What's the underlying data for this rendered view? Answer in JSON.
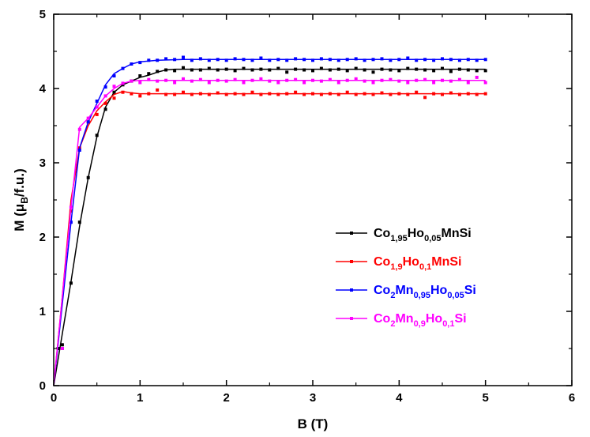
{
  "chart_data": {
    "type": "line",
    "xlabel": "B (T)",
    "ylabel": {
      "main": "M (",
      "mu": "μ",
      "sub": "B",
      "rest": "/f.u.)"
    },
    "xlim": [
      0,
      6
    ],
    "ylim": [
      0,
      5
    ],
    "xticks": [
      "0",
      "1",
      "2",
      "3",
      "4",
      "5",
      "6"
    ],
    "yticks": [
      "0",
      "1",
      "2",
      "3",
      "4",
      "5"
    ],
    "legend_position": "center-right",
    "series": [
      {
        "key": "s1",
        "color": "#000000",
        "legend_parts": [
          {
            "t": "Co",
            "sub": false
          },
          {
            "t": "1,95",
            "sub": true
          },
          {
            "t": "Ho",
            "sub": false
          },
          {
            "t": "0,05",
            "sub": true
          },
          {
            "t": "MnSi",
            "sub": false
          }
        ],
        "fit": [
          [
            0,
            0
          ],
          [
            0.1,
            0.7
          ],
          [
            0.2,
            1.4
          ],
          [
            0.3,
            2.15
          ],
          [
            0.4,
            2.8
          ],
          [
            0.5,
            3.35
          ],
          [
            0.6,
            3.75
          ],
          [
            0.7,
            3.95
          ],
          [
            0.8,
            4.05
          ],
          [
            0.9,
            4.1
          ],
          [
            1.0,
            4.15
          ],
          [
            1.1,
            4.18
          ],
          [
            1.2,
            4.22
          ],
          [
            1.3,
            4.25
          ],
          [
            1.4,
            4.26
          ],
          [
            1.5,
            4.26
          ],
          [
            2.0,
            4.26
          ],
          [
            3.0,
            4.26
          ],
          [
            4.0,
            4.26
          ],
          [
            5.0,
            4.26
          ]
        ],
        "points": [
          [
            0.05,
            0.5
          ],
          [
            0.1,
            0.55
          ],
          [
            0.2,
            1.38
          ],
          [
            0.3,
            2.2
          ],
          [
            0.4,
            2.8
          ],
          [
            0.5,
            3.37
          ],
          [
            0.6,
            3.72
          ],
          [
            0.7,
            3.95
          ],
          [
            0.8,
            4.05
          ],
          [
            0.9,
            4.1
          ],
          [
            1.0,
            4.17
          ],
          [
            1.1,
            4.2
          ],
          [
            1.2,
            4.23
          ],
          [
            1.3,
            4.25
          ],
          [
            1.4,
            4.24
          ],
          [
            1.5,
            4.28
          ],
          [
            1.6,
            4.25
          ],
          [
            1.7,
            4.25
          ],
          [
            1.8,
            4.27
          ],
          [
            1.9,
            4.25
          ],
          [
            2.0,
            4.26
          ],
          [
            2.1,
            4.24
          ],
          [
            2.2,
            4.27
          ],
          [
            2.3,
            4.25
          ],
          [
            2.4,
            4.26
          ],
          [
            2.5,
            4.25
          ],
          [
            2.6,
            4.27
          ],
          [
            2.7,
            4.22
          ],
          [
            2.8,
            4.26
          ],
          [
            2.9,
            4.25
          ],
          [
            3.0,
            4.24
          ],
          [
            3.1,
            4.27
          ],
          [
            3.2,
            4.25
          ],
          [
            3.3,
            4.26
          ],
          [
            3.4,
            4.24
          ],
          [
            3.5,
            4.27
          ],
          [
            3.6,
            4.25
          ],
          [
            3.7,
            4.22
          ],
          [
            3.8,
            4.26
          ],
          [
            3.9,
            4.25
          ],
          [
            4.0,
            4.24
          ],
          [
            4.1,
            4.27
          ],
          [
            4.2,
            4.26
          ],
          [
            4.3,
            4.25
          ],
          [
            4.4,
            4.24
          ],
          [
            4.5,
            4.27
          ],
          [
            4.6,
            4.23
          ],
          [
            4.7,
            4.26
          ],
          [
            4.8,
            4.25
          ],
          [
            4.9,
            4.24
          ],
          [
            5.0,
            4.24
          ]
        ]
      },
      {
        "key": "s2",
        "color": "#ff0000",
        "legend_parts": [
          {
            "t": "Co",
            "sub": false
          },
          {
            "t": "1,9",
            "sub": true
          },
          {
            "t": "Ho",
            "sub": false
          },
          {
            "t": "0,1",
            "sub": true
          },
          {
            "t": "MnSi",
            "sub": false
          }
        ],
        "fit": [
          [
            0,
            0
          ],
          [
            0.1,
            1.2
          ],
          [
            0.2,
            2.5
          ],
          [
            0.3,
            3.2
          ],
          [
            0.4,
            3.5
          ],
          [
            0.5,
            3.7
          ],
          [
            0.6,
            3.82
          ],
          [
            0.7,
            3.92
          ],
          [
            0.8,
            3.96
          ],
          [
            0.9,
            3.94
          ],
          [
            1.0,
            3.93
          ],
          [
            2.0,
            3.93
          ],
          [
            3.0,
            3.93
          ],
          [
            4.0,
            3.93
          ],
          [
            5.0,
            3.93
          ]
        ],
        "points": [
          [
            0.1,
            0.5
          ],
          [
            0.2,
            2.35
          ],
          [
            0.3,
            3.2
          ],
          [
            0.4,
            3.55
          ],
          [
            0.5,
            3.65
          ],
          [
            0.6,
            3.8
          ],
          [
            0.7,
            3.87
          ],
          [
            0.8,
            3.95
          ],
          [
            0.9,
            3.93
          ],
          [
            1.0,
            3.9
          ],
          [
            1.1,
            3.93
          ],
          [
            1.2,
            3.98
          ],
          [
            1.3,
            3.92
          ],
          [
            1.4,
            3.92
          ],
          [
            1.5,
            3.95
          ],
          [
            1.6,
            3.92
          ],
          [
            1.7,
            3.93
          ],
          [
            1.8,
            3.92
          ],
          [
            1.9,
            3.94
          ],
          [
            2.0,
            3.92
          ],
          [
            2.1,
            3.93
          ],
          [
            2.2,
            3.92
          ],
          [
            2.3,
            3.95
          ],
          [
            2.4,
            3.92
          ],
          [
            2.5,
            3.93
          ],
          [
            2.6,
            3.92
          ],
          [
            2.7,
            3.93
          ],
          [
            2.8,
            3.95
          ],
          [
            2.9,
            3.92
          ],
          [
            3.0,
            3.93
          ],
          [
            3.1,
            3.92
          ],
          [
            3.2,
            3.93
          ],
          [
            3.3,
            3.92
          ],
          [
            3.4,
            3.95
          ],
          [
            3.5,
            3.92
          ],
          [
            3.6,
            3.93
          ],
          [
            3.7,
            3.92
          ],
          [
            3.8,
            3.94
          ],
          [
            3.9,
            3.92
          ],
          [
            4.0,
            3.93
          ],
          [
            4.1,
            3.92
          ],
          [
            4.2,
            3.95
          ],
          [
            4.3,
            3.88
          ],
          [
            4.4,
            3.93
          ],
          [
            4.5,
            3.92
          ],
          [
            4.6,
            3.94
          ],
          [
            4.7,
            3.92
          ],
          [
            4.8,
            3.93
          ],
          [
            4.9,
            3.92
          ],
          [
            5.0,
            3.93
          ]
        ]
      },
      {
        "key": "s3",
        "color": "#0000ff",
        "legend_parts": [
          {
            "t": "Co",
            "sub": false
          },
          {
            "t": "2",
            "sub": true
          },
          {
            "t": "Mn",
            "sub": false
          },
          {
            "t": "0,95",
            "sub": true
          },
          {
            "t": "Ho",
            "sub": false
          },
          {
            "t": "0,05",
            "sub": true
          },
          {
            "t": "Si",
            "sub": false
          }
        ],
        "fit": [
          [
            0,
            0
          ],
          [
            0.1,
            1.1
          ],
          [
            0.2,
            2.2
          ],
          [
            0.3,
            3.2
          ],
          [
            0.4,
            3.55
          ],
          [
            0.5,
            3.8
          ],
          [
            0.6,
            4.05
          ],
          [
            0.7,
            4.2
          ],
          [
            0.8,
            4.27
          ],
          [
            0.9,
            4.33
          ],
          [
            1.0,
            4.36
          ],
          [
            1.2,
            4.38
          ],
          [
            1.5,
            4.39
          ],
          [
            2.0,
            4.39
          ],
          [
            3.0,
            4.39
          ],
          [
            4.0,
            4.39
          ],
          [
            5.0,
            4.39
          ]
        ],
        "points": [
          [
            0.1,
            0.5
          ],
          [
            0.2,
            2.2
          ],
          [
            0.3,
            3.17
          ],
          [
            0.4,
            3.55
          ],
          [
            0.5,
            3.83
          ],
          [
            0.6,
            4.02
          ],
          [
            0.7,
            4.17
          ],
          [
            0.8,
            4.27
          ],
          [
            0.9,
            4.33
          ],
          [
            1.0,
            4.35
          ],
          [
            1.1,
            4.38
          ],
          [
            1.2,
            4.38
          ],
          [
            1.3,
            4.4
          ],
          [
            1.4,
            4.39
          ],
          [
            1.5,
            4.42
          ],
          [
            1.6,
            4.38
          ],
          [
            1.7,
            4.4
          ],
          [
            1.8,
            4.38
          ],
          [
            1.9,
            4.39
          ],
          [
            2.0,
            4.38
          ],
          [
            2.1,
            4.4
          ],
          [
            2.2,
            4.39
          ],
          [
            2.3,
            4.38
          ],
          [
            2.4,
            4.41
          ],
          [
            2.5,
            4.38
          ],
          [
            2.6,
            4.39
          ],
          [
            2.7,
            4.38
          ],
          [
            2.8,
            4.4
          ],
          [
            2.9,
            4.39
          ],
          [
            3.0,
            4.38
          ],
          [
            3.1,
            4.4
          ],
          [
            3.2,
            4.39
          ],
          [
            3.3,
            4.38
          ],
          [
            3.4,
            4.39
          ],
          [
            3.5,
            4.4
          ],
          [
            3.6,
            4.38
          ],
          [
            3.7,
            4.39
          ],
          [
            3.8,
            4.4
          ],
          [
            3.9,
            4.38
          ],
          [
            4.0,
            4.39
          ],
          [
            4.1,
            4.41
          ],
          [
            4.2,
            4.38
          ],
          [
            4.3,
            4.39
          ],
          [
            4.4,
            4.38
          ],
          [
            4.5,
            4.4
          ],
          [
            4.6,
            4.39
          ],
          [
            4.7,
            4.38
          ],
          [
            4.8,
            4.39
          ],
          [
            4.9,
            4.38
          ],
          [
            5.0,
            4.39
          ]
        ]
      },
      {
        "key": "s4",
        "color": "#ff00ff",
        "legend_parts": [
          {
            "t": "Co",
            "sub": false
          },
          {
            "t": "2",
            "sub": true
          },
          {
            "t": "Mn",
            "sub": false
          },
          {
            "t": "0,9",
            "sub": true
          },
          {
            "t": "Ho",
            "sub": false
          },
          {
            "t": "0,1",
            "sub": true
          },
          {
            "t": "Si",
            "sub": false
          }
        ],
        "fit": [
          [
            0,
            0
          ],
          [
            0.1,
            1.2
          ],
          [
            0.2,
            2.4
          ],
          [
            0.3,
            3.48
          ],
          [
            0.4,
            3.6
          ],
          [
            0.5,
            3.75
          ],
          [
            0.6,
            3.9
          ],
          [
            0.7,
            4.0
          ],
          [
            0.8,
            4.07
          ],
          [
            0.9,
            4.1
          ],
          [
            1.0,
            4.11
          ],
          [
            1.5,
            4.11
          ],
          [
            2.0,
            4.11
          ],
          [
            3.0,
            4.11
          ],
          [
            4.0,
            4.11
          ],
          [
            5.0,
            4.11
          ]
        ],
        "points": [
          [
            0.1,
            0.5
          ],
          [
            0.2,
            2.4
          ],
          [
            0.3,
            3.45
          ],
          [
            0.4,
            3.6
          ],
          [
            0.5,
            3.75
          ],
          [
            0.6,
            3.9
          ],
          [
            0.7,
            4.03
          ],
          [
            0.8,
            4.07
          ],
          [
            0.9,
            4.1
          ],
          [
            1.0,
            4.08
          ],
          [
            1.1,
            4.12
          ],
          [
            1.2,
            4.1
          ],
          [
            1.3,
            4.11
          ],
          [
            1.4,
            4.08
          ],
          [
            1.5,
            4.13
          ],
          [
            1.6,
            4.1
          ],
          [
            1.7,
            4.12
          ],
          [
            1.8,
            4.08
          ],
          [
            1.9,
            4.11
          ],
          [
            2.0,
            4.1
          ],
          [
            2.1,
            4.12
          ],
          [
            2.2,
            4.08
          ],
          [
            2.3,
            4.11
          ],
          [
            2.4,
            4.13
          ],
          [
            2.5,
            4.1
          ],
          [
            2.6,
            4.08
          ],
          [
            2.7,
            4.11
          ],
          [
            2.8,
            4.12
          ],
          [
            2.9,
            4.08
          ],
          [
            3.0,
            4.11
          ],
          [
            3.1,
            4.1
          ],
          [
            3.2,
            4.12
          ],
          [
            3.3,
            4.08
          ],
          [
            3.4,
            4.11
          ],
          [
            3.5,
            4.13
          ],
          [
            3.6,
            4.1
          ],
          [
            3.7,
            4.08
          ],
          [
            3.8,
            4.11
          ],
          [
            3.9,
            4.12
          ],
          [
            4.0,
            4.1
          ],
          [
            4.1,
            4.08
          ],
          [
            4.2,
            4.11
          ],
          [
            4.3,
            4.12
          ],
          [
            4.4,
            4.08
          ],
          [
            4.5,
            4.11
          ],
          [
            4.6,
            4.1
          ],
          [
            4.7,
            4.12
          ],
          [
            4.8,
            4.08
          ],
          [
            4.9,
            4.15
          ],
          [
            5.0,
            4.08
          ]
        ]
      }
    ]
  }
}
